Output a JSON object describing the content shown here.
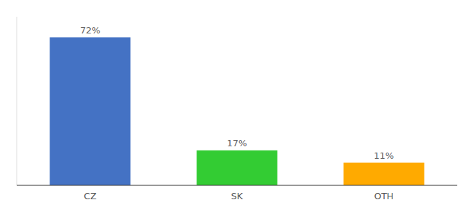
{
  "chart_data": {
    "type": "bar",
    "categories": [
      "CZ",
      "SK",
      "OTH"
    ],
    "values": [
      72,
      17,
      11
    ],
    "value_labels": [
      "72%",
      "17%",
      "11%"
    ],
    "colors": [
      "#4472c4",
      "#33cc33",
      "#ffaa00"
    ],
    "ylim": [
      0,
      82
    ],
    "data_labels": true,
    "tick_labels": "x",
    "grid": false
  }
}
